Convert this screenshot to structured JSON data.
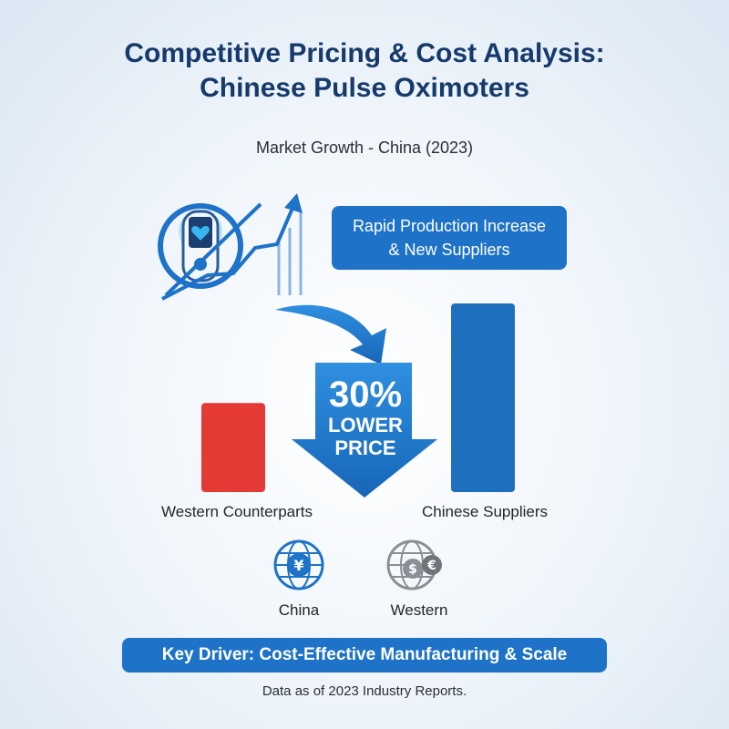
{
  "header": {
    "title_line1": "Competitive Pricing & Cost Analysis:",
    "title_line2": "Chinese Pulse Oximoters",
    "subtitle": "Market Growth - China (2023)"
  },
  "callout": {
    "line1": "Rapid Production Increase",
    "line2": "& New Suppliers"
  },
  "arrow": {
    "percent": "30%",
    "line1": "LOWER",
    "line2": "PRICE"
  },
  "chart_data": {
    "type": "bar",
    "categories": [
      "Western Counterparts",
      "Chinese Suppliers"
    ],
    "values": [
      34,
      72
    ],
    "colors": [
      "#e53935",
      "#1f6fbf"
    ],
    "ylim": [
      0,
      80
    ],
    "grid": false,
    "xlabel": "",
    "ylabel": ""
  },
  "regions": {
    "china": {
      "label": "China",
      "icon": "globe-yuan-icon",
      "color": "#1e73c8"
    },
    "western": {
      "label": "Western",
      "icon": "globe-dollar-euro-icon",
      "color": "#8a8f96"
    }
  },
  "symbols": {
    "yuan": "¥",
    "dollar": "$",
    "euro": "€"
  },
  "footer": {
    "driver": "Key Driver: Cost-Effective Manufacturing & Scale",
    "note": "Data as of 2023 Industry Reports."
  }
}
